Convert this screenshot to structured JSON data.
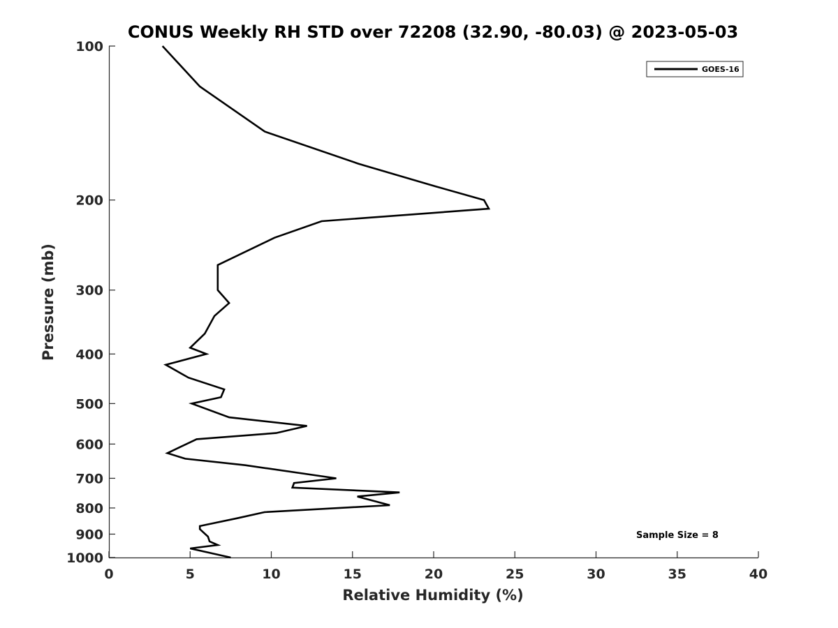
{
  "chart_data": {
    "type": "line",
    "title": "CONUS Weekly RH STD over 72208 (32.90, -80.03) @ 2023-05-03",
    "xlabel": "Relative Humidity (%)",
    "ylabel": "Pressure (mb)",
    "xlim": [
      0,
      40
    ],
    "ylim": [
      100,
      1000
    ],
    "yscale": "log",
    "y_reversed": true,
    "grid": false,
    "legend_position": "top-right",
    "x_ticks": [
      0,
      5,
      10,
      15,
      20,
      25,
      30,
      35,
      40
    ],
    "x_tick_labels": [
      "0",
      "5",
      "10",
      "15",
      "20",
      "25",
      "30",
      "35",
      "40"
    ],
    "y_ticks": [
      100,
      200,
      300,
      400,
      500,
      600,
      700,
      800,
      900,
      1000
    ],
    "y_tick_labels": [
      "100",
      "200",
      "300",
      "400",
      "500",
      "600",
      "700",
      "800",
      "900",
      "1000"
    ],
    "series": [
      {
        "name": "GOES-16",
        "color": "#000000",
        "x": [
          3.3,
          5.6,
          9.6,
          15.4,
          20.1,
          23.1,
          23.4,
          13.1,
          10.2,
          6.7,
          6.7,
          7.4,
          6.5,
          5.9,
          5.0,
          6.0,
          3.5,
          4.9,
          7.1,
          6.9,
          5.1,
          7.4,
          12.2,
          10.3,
          5.4,
          4.3,
          3.6,
          4.7,
          8.4,
          14.0,
          11.4,
          11.3,
          17.9,
          15.3,
          17.3,
          9.6,
          7.9,
          5.6,
          5.6,
          6.1,
          6.2,
          6.7,
          5.0,
          7.5
        ],
        "y": [
          100,
          120,
          147,
          170,
          188,
          200,
          208,
          220,
          237,
          268,
          300,
          318,
          337,
          365,
          389,
          400,
          420,
          445,
          469,
          486,
          500,
          532,
          553,
          571,
          587,
          610,
          625,
          641,
          660,
          700,
          715,
          730,
          746,
          760,
          790,
          815,
          838,
          868,
          880,
          910,
          930,
          945,
          960,
          1000
        ]
      }
    ],
    "annotations": [
      "Sample Size = 8"
    ]
  }
}
